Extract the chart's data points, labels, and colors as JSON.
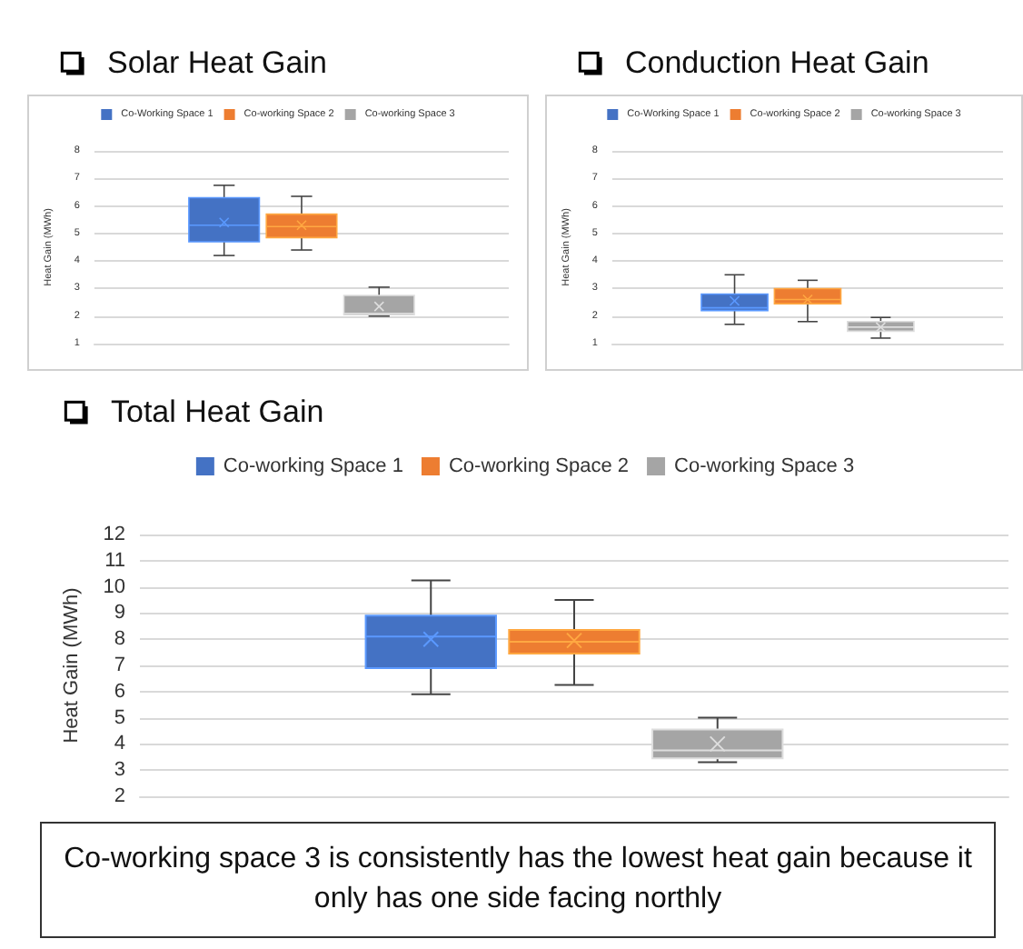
{
  "chart_data": [
    {
      "type": "box",
      "title": "Solar Heat Gain",
      "ylabel": "Heat Gain (MWh)",
      "categories": [
        null
      ],
      "ylim": [
        1,
        8
      ],
      "yticks": [
        1,
        2,
        3,
        4,
        5,
        6,
        7,
        8
      ],
      "grid": "y",
      "legend": "top",
      "tick_labels": "y",
      "series": [
        {
          "name": "Co-Working Space 1",
          "color": "#4472c4",
          "boxes": [
            {
              "low": 4.2,
              "q1": 4.7,
              "median": 5.3,
              "q3": 6.3,
              "high": 6.75,
              "mean": 5.4
            }
          ]
        },
        {
          "name": "Co-working Space 2",
          "color": "#ed7d31",
          "boxes": [
            {
              "low": 4.4,
              "q1": 4.85,
              "median": 5.25,
              "q3": 5.7,
              "high": 6.35,
              "mean": 5.3
            }
          ]
        },
        {
          "name": "Co-working Space 3",
          "color": "#a5a5a5",
          "boxes": [
            {
              "low": 2.0,
              "q1": 2.05,
              "median": 2.1,
              "q3": 2.75,
              "high": 3.05,
              "mean": 2.35
            }
          ]
        }
      ]
    },
    {
      "type": "box",
      "title": "Conduction Heat Gain",
      "ylabel": "Heat Gain (MWh)",
      "categories": [
        null
      ],
      "ylim": [
        1,
        8
      ],
      "yticks": [
        1,
        2,
        3,
        4,
        5,
        6,
        7,
        8
      ],
      "grid": "y",
      "legend": "top",
      "tick_labels": "y",
      "series": [
        {
          "name": "Co-Working Space 1",
          "color": "#4472c4",
          "boxes": [
            {
              "low": 1.7,
              "q1": 2.2,
              "median": 2.3,
              "q3": 2.8,
              "high": 3.5,
              "mean": 2.55
            }
          ]
        },
        {
          "name": "Co-working Space 2",
          "color": "#ed7d31",
          "boxes": [
            {
              "low": 1.8,
              "q1": 2.45,
              "median": 2.6,
              "q3": 3.0,
              "high": 3.3,
              "mean": 2.6
            }
          ]
        },
        {
          "name": "Co-working Space 3",
          "color": "#a5a5a5",
          "boxes": [
            {
              "low": 1.2,
              "q1": 1.45,
              "median": 1.6,
              "q3": 1.8,
              "high": 1.95,
              "mean": 1.6
            }
          ]
        }
      ]
    },
    {
      "type": "box",
      "title": "Total Heat Gain",
      "ylabel": "Heat Gain (MWh)",
      "categories": [
        null
      ],
      "ylim": [
        2,
        12
      ],
      "yticks": [
        2,
        3,
        4,
        5,
        6,
        7,
        8,
        9,
        10,
        11,
        12
      ],
      "grid": "y",
      "legend": "top",
      "tick_labels": "y",
      "series": [
        {
          "name": "Co-working Space 1",
          "color": "#4472c4",
          "boxes": [
            {
              "low": 5.9,
              "q1": 6.9,
              "median": 8.1,
              "q3": 8.9,
              "high": 10.25,
              "mean": 8.0
            }
          ]
        },
        {
          "name": "Co-working Space 2",
          "color": "#ed7d31",
          "boxes": [
            {
              "low": 6.25,
              "q1": 7.45,
              "median": 7.9,
              "q3": 8.35,
              "high": 9.5,
              "mean": 7.95
            }
          ]
        },
        {
          "name": "Co-working Space 3",
          "color": "#a5a5a5",
          "boxes": [
            {
              "low": 3.3,
              "q1": 3.45,
              "median": 3.75,
              "q3": 4.55,
              "high": 5.0,
              "mean": 4.0
            }
          ]
        }
      ]
    },
    {
      "type": "other",
      "annotations": [
        "Co-working space 3 is consistently has the lowest heat gain because it only has one side facing northly"
      ]
    }
  ]
}
